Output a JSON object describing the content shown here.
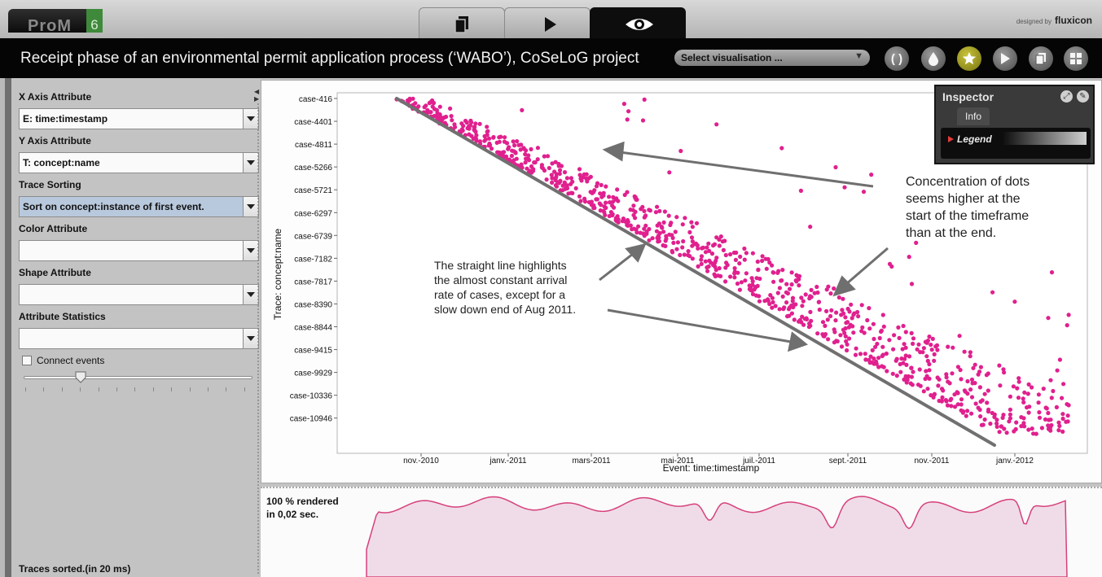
{
  "topbar": {
    "logo_text": "ProM",
    "logo_version": "6",
    "designed_by": "designed by",
    "designed_brand": "fluxicon",
    "tabs": [
      {
        "name": "workspace",
        "icon": "documents-icon",
        "active": false
      },
      {
        "name": "actions",
        "icon": "play-icon",
        "active": false
      },
      {
        "name": "views",
        "icon": "eye-icon",
        "active": true
      }
    ]
  },
  "titlebar": {
    "title": "Receipt phase of an environmental permit application process (‘WABO’), CoSeLoG project",
    "visualisation_placeholder": "Select visualisation ...",
    "buttons": [
      "refresh-icon",
      "drop-icon",
      "star-icon",
      "play-icon",
      "export-icon",
      "grid-icon"
    ]
  },
  "left_panel": {
    "x_axis_label": "X Axis Attribute",
    "x_axis_value": "E: time:timestamp",
    "y_axis_label": "Y Axis Attribute",
    "y_axis_value": "T: concept:name",
    "trace_sorting_label": "Trace Sorting",
    "trace_sorting_value": "Sort on concept:instance of first event.",
    "color_label": "Color Attribute",
    "color_value": "",
    "shape_label": "Shape Attribute",
    "shape_value": "",
    "stats_label": "Attribute Statistics",
    "stats_value": "",
    "connect_events_label": "Connect events",
    "connect_events_checked": false,
    "slider_fraction": 0.25,
    "status": "Traces sorted.(in 20 ms)"
  },
  "inspector": {
    "title": "Inspector",
    "tab": "Info",
    "legend": "Legend"
  },
  "density": {
    "rendered_line1": "100 % rendered",
    "rendered_line2": "in 0,02 sec."
  },
  "chart_data": {
    "type": "scatter",
    "xlabel": "Event: time:timestamp",
    "ylabel": "Trace: concept:name",
    "x_ticks": [
      "nov.-2010",
      "janv.-2011",
      "mars-2011",
      "mai-2011",
      "juil.-2011",
      "sept.-2011",
      "nov.-2011",
      "janv.-2012"
    ],
    "y_ticks": [
      "case-416",
      "case-4401",
      "case-4811",
      "case-5266",
      "case-5721",
      "case-6297",
      "case-6739",
      "case-7182",
      "case-7817",
      "case-8390",
      "case-8844",
      "case-9415",
      "case-9929",
      "case-10336",
      "case-10946"
    ],
    "x_range": [
      "2010-09-12",
      "2012-02-08"
    ],
    "grid": false,
    "point_color": "#e0208e",
    "series": [
      {
        "name": "",
        "description_points": "events per trace, density band along diagonal"
      }
    ],
    "trend_line": {
      "from": [
        "2010-10-15",
        "case-416"
      ],
      "to": [
        "2012-01-21",
        "case-10946"
      ]
    },
    "annotations": [
      {
        "text": [
          "Concentration of dots",
          "seems higher at the",
          "start of the timeframe",
          "than at the end."
        ]
      },
      {
        "text": [
          "The straight line highlights",
          "the almost constant arrival",
          "rate of cases, except for a",
          "slow down end of Aug  2011."
        ]
      }
    ]
  }
}
